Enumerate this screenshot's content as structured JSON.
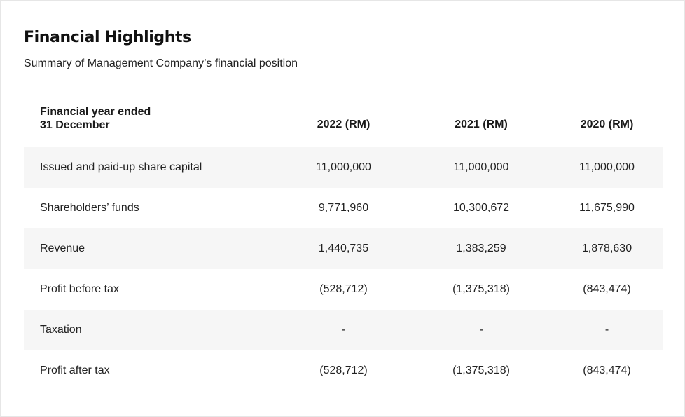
{
  "title": "Financial Highlights",
  "subtitle": "Summary of Management Company’s financial position",
  "table": {
    "header": {
      "label_line1": "Financial year ended",
      "label_line2": "31 December",
      "columns": [
        "2022 (RM)",
        "2021 (RM)",
        "2020 (RM)"
      ]
    },
    "rows": [
      {
        "label": "Issued and paid-up share capital",
        "values": [
          "11,000,000",
          "11,000,000",
          "11,000,000"
        ]
      },
      {
        "label": "Shareholders’ funds",
        "values": [
          "9,771,960",
          "10,300,672",
          "11,675,990"
        ]
      },
      {
        "label": "Revenue",
        "values": [
          "1,440,735",
          "1,383,259",
          "1,878,630"
        ]
      },
      {
        "label": "Profit before tax",
        "values": [
          "(528,712)",
          "(1,375,318)",
          "(843,474)"
        ]
      },
      {
        "label": "Taxation",
        "values": [
          "-",
          "-",
          "-"
        ]
      },
      {
        "label": "Profit after tax",
        "values": [
          "(528,712)",
          "(1,375,318)",
          "(843,474)"
        ]
      }
    ]
  }
}
